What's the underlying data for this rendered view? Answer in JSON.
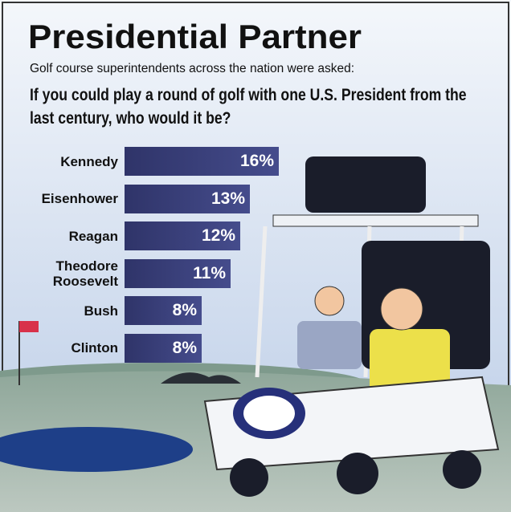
{
  "chart_data": {
    "type": "bar",
    "orientation": "horizontal",
    "title": "Presidential Partner",
    "subtitle": "Golf course superintendents across the nation were asked:",
    "question": "If you could play a round of golf with one U.S. President from the last century, who would it be?",
    "categories": [
      "Kennedy",
      "Eisenhower",
      "Reagan",
      "Theodore Roosevelt",
      "Bush",
      "Clinton"
    ],
    "values": [
      16,
      13,
      12,
      11,
      8,
      8
    ],
    "value_labels": [
      "16%",
      "13%",
      "12%",
      "11%",
      "8%",
      "8%"
    ],
    "color": "#454c8c"
  }
}
